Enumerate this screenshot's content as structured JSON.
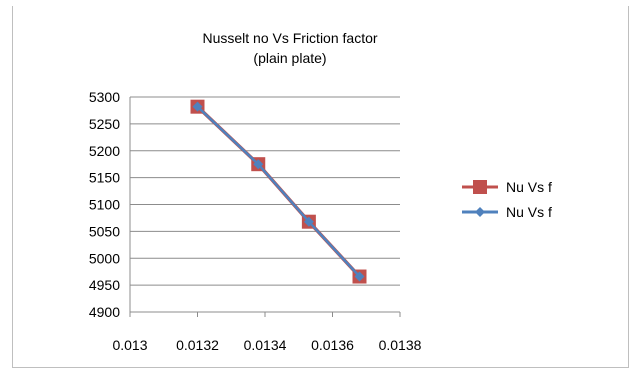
{
  "chart_data": {
    "type": "line",
    "title": [
      "Nusselt no Vs Friction factor",
      "(plain plate)"
    ],
    "xlabel": "",
    "ylabel": "",
    "x": [
      0.0132,
      0.01338,
      0.01353,
      0.01368
    ],
    "xlim": [
      0.013,
      0.0138
    ],
    "x_tick_labels": [
      "0.013",
      "0.0132",
      "0.0134",
      "0.0136",
      "0.0138"
    ],
    "ylim": [
      4900,
      5300
    ],
    "y_ticks": [
      4900,
      4950,
      5000,
      5050,
      5100,
      5150,
      5200,
      5250,
      5300
    ],
    "grid": true,
    "legend_position": "right",
    "series": [
      {
        "name": "Nu Vs f",
        "values": [
          5282,
          5175,
          5068,
          4966
        ],
        "color": "#c0504d",
        "marker": "square"
      },
      {
        "name": "Nu Vs f",
        "values": [
          5282,
          5175,
          5068,
          4966
        ],
        "color": "#4f81bd",
        "marker": "diamond"
      }
    ]
  }
}
